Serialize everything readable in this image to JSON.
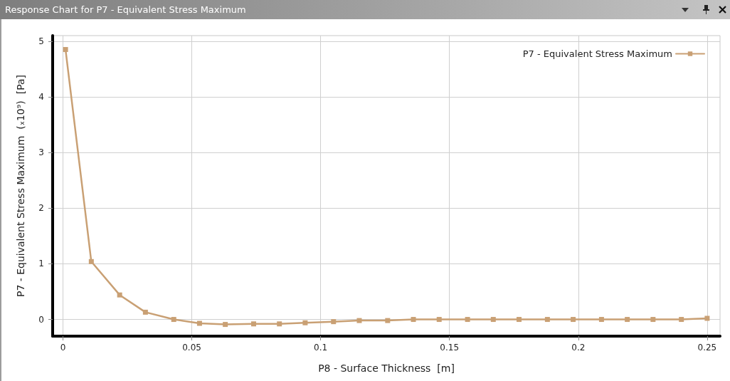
{
  "chart_data": {
    "type": "line",
    "title": "Response Chart for P7 - Equivalent Stress Maximum",
    "xlabel": "P8 - Surface Thickness  [m]",
    "ylabel": "P7 - Equivalent Stress Maximum  (ₓ10⁹)  [Pa]",
    "x": [
      0.001,
      0.011,
      0.022,
      0.032,
      0.043,
      0.053,
      0.063,
      0.074,
      0.084,
      0.094,
      0.105,
      0.115,
      0.126,
      0.136,
      0.146,
      0.157,
      0.167,
      0.177,
      0.188,
      0.198,
      0.209,
      0.219,
      0.229,
      0.24,
      0.25
    ],
    "series": [
      {
        "name": "P7 - Equivalent Stress Maximum",
        "color": "#c9a074",
        "values": [
          4.85,
          1.04,
          0.44,
          0.13,
          0,
          -0.07,
          -0.09,
          -0.08,
          -0.08,
          -0.06,
          -0.04,
          -0.02,
          -0.02,
          0,
          0,
          0,
          0,
          0,
          0,
          0,
          0,
          0,
          0,
          0,
          0.02
        ]
      }
    ],
    "xlim": [
      -0.004,
      0.255
    ],
    "ylim": [
      -0.3,
      5.1
    ],
    "xticks": [
      0,
      0.05,
      0.1,
      0.15,
      0.2,
      0.25
    ],
    "yticks": [
      0,
      1,
      2,
      3,
      4,
      5
    ],
    "grid": true,
    "legend": "top right",
    "marker": "square",
    "line_style": "solid"
  }
}
